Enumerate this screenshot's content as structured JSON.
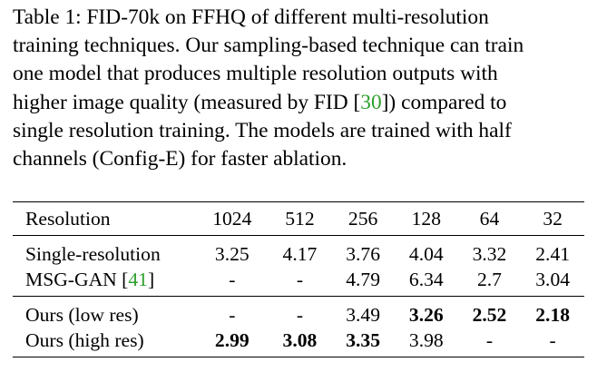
{
  "caption": {
    "lines": [
      "Table 1: FID-70k on FFHQ of different multi-resolution",
      "training techniques. Our sampling-based technique can train",
      "one model that produces multiple resolution outputs with",
      {
        "before": "higher image quality (measured by FID [",
        "cite": "30",
        "after": "]) compared to"
      },
      "single resolution training. The models are trained with half",
      "channels (Config-E) for faster ablation."
    ]
  },
  "table": {
    "header": [
      "Resolution",
      "1024",
      "512",
      "256",
      "128",
      "64",
      "32"
    ],
    "groups": [
      {
        "rows": [
          {
            "label": "Single-resolution",
            "values": [
              "3.25",
              "4.17",
              "3.76",
              "4.04",
              "3.32",
              "2.41"
            ],
            "bold": [
              false,
              false,
              false,
              false,
              false,
              false
            ]
          },
          {
            "label_before": "MSG-GAN [",
            "label_cite": "41",
            "label_after": "]",
            "values": [
              "-",
              "-",
              "4.79",
              "6.34",
              "2.7",
              "3.04"
            ],
            "bold": [
              false,
              false,
              false,
              false,
              false,
              false
            ]
          }
        ]
      },
      {
        "rows": [
          {
            "label": "Ours (low res)",
            "values": [
              "-",
              "-",
              "3.49",
              "3.26",
              "2.52",
              "2.18"
            ],
            "bold": [
              false,
              false,
              false,
              true,
              true,
              true
            ]
          },
          {
            "label": "Ours (high res)",
            "values": [
              "2.99",
              "3.08",
              "3.35",
              "3.98",
              "-",
              "-"
            ],
            "bold": [
              true,
              true,
              true,
              false,
              false,
              false
            ]
          }
        ]
      }
    ]
  },
  "colors": {
    "citation": "#2ca02c"
  }
}
